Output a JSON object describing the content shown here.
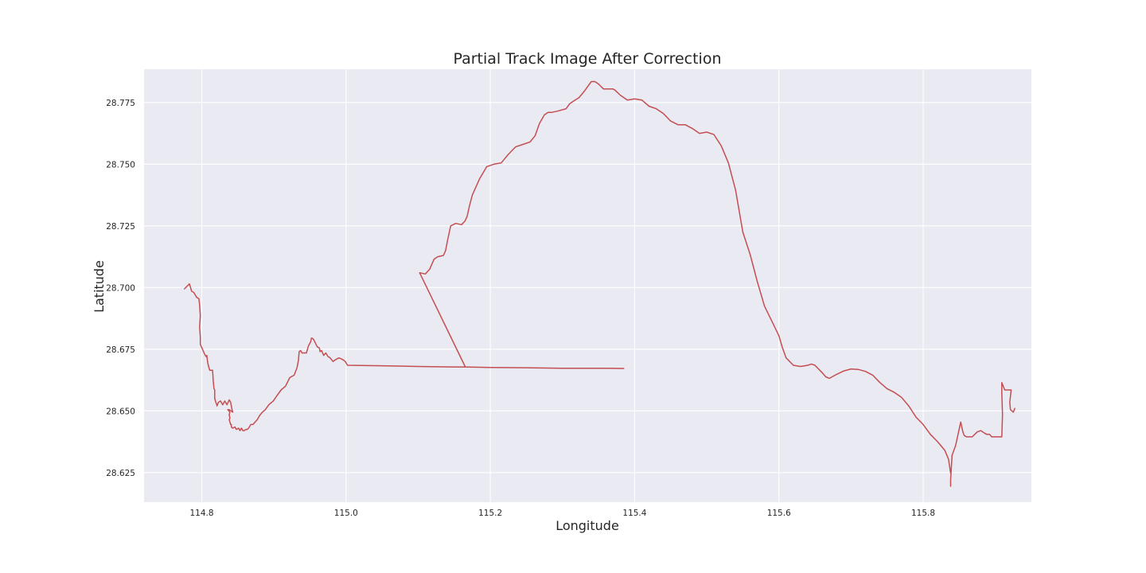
{
  "chart_data": {
    "type": "line",
    "title": "Partial Track Image After Correction",
    "xlabel": "Longitude",
    "ylabel": "Latitude",
    "xlim": [
      114.72,
      115.95
    ],
    "ylim": [
      28.613,
      28.7885
    ],
    "grid": true,
    "x_ticks": [
      114.8,
      115.0,
      115.2,
      115.4,
      115.6,
      115.8
    ],
    "x_tick_labels": [
      "114.8",
      "115.0",
      "115.2",
      "115.4",
      "115.6",
      "115.8"
    ],
    "y_ticks": [
      28.625,
      28.65,
      28.675,
      28.7,
      28.725,
      28.75,
      28.775
    ],
    "y_tick_labels": [
      "28.625",
      "28.650",
      "28.675",
      "28.700",
      "28.725",
      "28.750",
      "28.775"
    ],
    "background": "#eaeaf2",
    "line_color": "#c44e52",
    "series": [
      {
        "name": "track",
        "x": [
          114.776,
          114.783,
          114.786,
          114.789,
          114.793,
          114.796,
          114.797,
          114.798,
          114.797,
          114.798,
          114.798,
          114.801,
          114.804,
          114.806,
          114.807,
          114.808,
          114.809,
          114.811,
          114.812,
          114.815,
          114.816,
          114.817,
          114.818,
          114.818,
          114.82,
          114.821,
          114.821,
          114.823,
          114.826,
          114.829,
          114.832,
          114.835,
          114.838,
          114.84,
          114.842,
          114.843,
          114.838,
          114.836,
          114.839,
          114.838,
          114.839,
          114.838,
          114.84,
          114.841,
          114.841,
          114.843,
          114.846,
          114.848,
          114.851,
          114.853,
          114.855,
          114.857,
          114.859,
          114.861,
          114.863,
          114.865,
          114.868,
          114.871,
          114.874,
          114.877,
          114.88,
          114.884,
          114.888,
          114.893,
          114.899,
          114.905,
          114.91,
          114.916,
          114.922,
          114.928,
          114.932,
          114.934,
          114.935,
          114.937,
          114.939,
          114.941,
          114.945,
          114.948,
          114.951,
          114.952,
          114.953,
          114.955,
          114.96,
          114.963,
          114.964,
          114.966,
          114.969,
          114.972,
          114.975,
          114.978,
          114.982,
          114.984,
          114.987,
          114.99,
          114.994,
          114.997,
          114.999,
          115.002,
          115.05,
          115.1,
          115.15,
          115.165,
          115.2,
          115.25,
          115.3,
          115.35,
          115.385
        ],
        "y": [
          28.6995,
          28.7015,
          28.6985,
          28.698,
          28.696,
          28.6955,
          28.693,
          28.6885,
          28.684,
          28.68,
          28.677,
          28.675,
          28.673,
          28.672,
          28.6725,
          28.67,
          28.6685,
          28.6665,
          28.6665,
          28.6665,
          28.662,
          28.659,
          28.6585,
          28.655,
          28.653,
          28.6525,
          28.652,
          28.6535,
          28.654,
          28.6525,
          28.654,
          28.6525,
          28.6545,
          28.6535,
          28.6505,
          28.6495,
          28.6505,
          28.6505,
          28.6495,
          28.6485,
          28.647,
          28.6465,
          28.6445,
          28.6445,
          28.6435,
          28.643,
          28.6435,
          28.6425,
          28.643,
          28.642,
          28.643,
          28.642,
          28.642,
          28.6425,
          28.6425,
          28.643,
          28.6445,
          28.6445,
          28.6455,
          28.6465,
          28.648,
          28.6495,
          28.6505,
          28.6525,
          28.654,
          28.6565,
          28.6585,
          28.66,
          28.6635,
          28.6645,
          28.6675,
          28.6705,
          28.674,
          28.6745,
          28.6735,
          28.6735,
          28.6735,
          28.6765,
          28.678,
          28.6795,
          28.6795,
          28.679,
          28.676,
          28.6755,
          28.674,
          28.6745,
          28.6725,
          28.6735,
          28.672,
          28.6715,
          28.67,
          28.6705,
          28.671,
          28.6715,
          28.671,
          28.6705,
          28.67,
          28.6685,
          28.6683,
          28.668,
          28.6678,
          28.6678,
          28.6676,
          28.6675,
          28.6673,
          28.6673,
          28.6672
        ]
      },
      {
        "name": "track",
        "x": [
          115.165,
          115.102,
          115.11,
          115.116,
          115.122,
          115.127,
          115.135,
          115.138,
          115.141,
          115.145,
          115.152,
          115.16,
          115.165,
          115.168,
          115.171,
          115.175,
          115.185,
          115.195,
          115.205,
          115.215,
          115.225,
          115.235,
          115.245,
          115.255,
          115.262,
          115.268,
          115.275,
          115.28,
          115.285,
          115.293,
          115.305,
          115.31,
          115.315,
          115.323,
          115.33,
          115.335,
          115.34,
          115.345,
          115.35,
          115.357,
          115.36,
          115.365,
          115.37,
          115.373,
          115.38,
          115.385,
          115.39,
          115.4,
          115.41,
          115.42,
          115.43,
          115.44,
          115.45,
          115.46,
          115.47,
          115.48,
          115.49,
          115.5,
          115.51,
          115.52,
          115.53,
          115.54,
          115.55,
          115.56,
          115.565,
          115.57,
          115.58,
          115.59,
          115.6,
          115.605,
          115.61,
          115.62,
          115.63,
          115.64,
          115.645,
          115.65,
          115.66,
          115.665,
          115.67,
          115.68,
          115.69,
          115.7,
          115.71,
          115.72,
          115.73,
          115.74,
          115.75,
          115.76,
          115.77,
          115.78,
          115.79,
          115.8,
          115.81,
          115.82,
          115.83,
          115.835,
          115.838
        ],
        "y": [
          28.668,
          28.706,
          28.7055,
          28.7075,
          28.7115,
          28.7125,
          28.713,
          28.715,
          28.7195,
          28.725,
          28.726,
          28.7255,
          28.727,
          28.729,
          28.733,
          28.7375,
          28.744,
          28.749,
          28.75,
          28.7505,
          28.754,
          28.757,
          28.758,
          28.759,
          28.7615,
          28.7665,
          28.77,
          28.771,
          28.771,
          28.7715,
          28.7725,
          28.7745,
          28.7755,
          28.777,
          28.7795,
          28.7815,
          28.7835,
          28.7835,
          28.7825,
          28.7805,
          28.7805,
          28.7805,
          28.7805,
          28.78,
          28.778,
          28.777,
          28.776,
          28.7765,
          28.776,
          28.7735,
          28.7725,
          28.7705,
          28.7675,
          28.766,
          28.766,
          28.7645,
          28.7625,
          28.763,
          28.762,
          28.7575,
          28.7505,
          28.7395,
          28.7225,
          28.7135,
          28.708,
          28.7025,
          28.6925,
          28.6865,
          28.6805,
          28.6755,
          28.6715,
          28.6685,
          28.668,
          28.6685,
          28.669,
          28.6685,
          28.6655,
          28.6638,
          28.6632,
          28.6648,
          28.6662,
          28.667,
          28.6668,
          28.666,
          28.6645,
          28.6615,
          28.659,
          28.6575,
          28.6555,
          28.652,
          28.6475,
          28.6445,
          28.6405,
          28.6375,
          28.634,
          28.6305,
          28.6248
        ]
      },
      {
        "name": "track",
        "x": [
          115.838,
          115.838,
          115.84,
          115.845,
          115.852,
          115.855,
          115.857,
          115.86,
          115.868,
          115.875,
          115.88,
          115.885,
          115.888,
          115.892,
          115.895,
          115.9,
          115.905,
          115.909,
          115.91,
          115.909,
          115.909,
          115.913,
          115.918,
          115.922,
          115.92,
          115.921,
          115.925,
          115.927
        ],
        "y": [
          28.6195,
          28.622,
          28.632,
          28.636,
          28.6455,
          28.6415,
          28.64,
          28.6395,
          28.6395,
          28.6415,
          28.642,
          28.641,
          28.6405,
          28.6405,
          28.6395,
          28.6395,
          28.6395,
          28.6395,
          28.6485,
          28.6575,
          28.6615,
          28.6585,
          28.6585,
          28.6585,
          28.6535,
          28.6505,
          28.6495,
          28.651
        ]
      }
    ]
  }
}
